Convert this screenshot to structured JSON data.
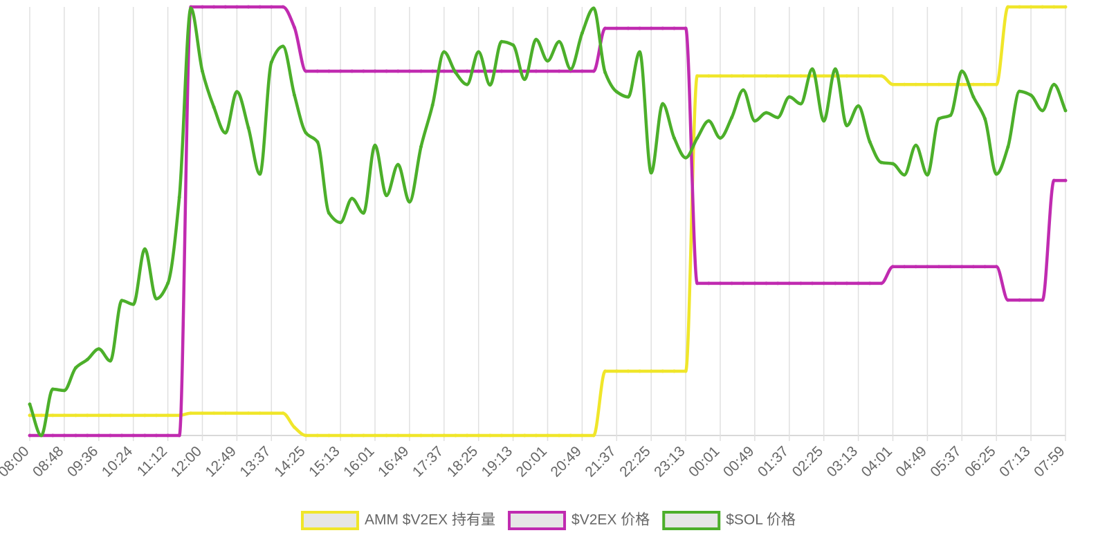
{
  "chart_data": {
    "type": "line",
    "categories": [
      "08:00",
      null,
      null,
      "08:48",
      null,
      null,
      "09:36",
      null,
      null,
      "10:24",
      null,
      null,
      "11:12",
      null,
      null,
      "12:00",
      null,
      null,
      "12:49",
      null,
      null,
      "13:37",
      null,
      null,
      "14:25",
      null,
      null,
      "15:13",
      null,
      null,
      "16:01",
      null,
      null,
      "16:49",
      null,
      null,
      "17:37",
      null,
      null,
      "18:25",
      null,
      null,
      "19:13",
      null,
      null,
      "20:01",
      null,
      null,
      "20:49",
      null,
      null,
      "21:37",
      null,
      null,
      "22:25",
      null,
      null,
      "23:13",
      null,
      null,
      "00:01",
      null,
      null,
      "00:49",
      null,
      null,
      "01:37",
      null,
      null,
      "02:25",
      null,
      null,
      "03:13",
      null,
      null,
      "04:01",
      null,
      null,
      "04:49",
      null,
      null,
      "05:37",
      null,
      null,
      "06:25",
      null,
      null,
      "07:13",
      null,
      null,
      "07:59"
    ],
    "series": [
      {
        "name": "AMM $V2EX 持有量",
        "color": "#f0e62a",
        "values": [
          4.7,
          4.7,
          4.7,
          4.7,
          4.7,
          4.7,
          4.7,
          4.7,
          4.7,
          4.7,
          4.7,
          4.7,
          4.7,
          4.7,
          5.2,
          5.2,
          5.2,
          5.2,
          5.2,
          5.2,
          5.2,
          5.2,
          5.2,
          1.9,
          0,
          0,
          0,
          0,
          0,
          0,
          0,
          0,
          0,
          0,
          0,
          0,
          0,
          0,
          0,
          0,
          0,
          0,
          0,
          0,
          0,
          0,
          0,
          0,
          0,
          0,
          15,
          15,
          15,
          15,
          15,
          15,
          15,
          15,
          83.9,
          83.9,
          83.9,
          83.9,
          83.9,
          83.9,
          83.9,
          83.9,
          83.9,
          83.9,
          83.9,
          83.9,
          83.9,
          83.9,
          83.9,
          83.9,
          83.9,
          81.9,
          81.9,
          81.9,
          81.9,
          81.9,
          81.9,
          81.9,
          81.9,
          81.9,
          81.9,
          100,
          100,
          100,
          100,
          100,
          100
        ]
      },
      {
        "name": "$V2EX 价格",
        "color": "#c02bb0",
        "values": [
          0,
          0,
          0,
          0,
          0,
          0,
          0,
          0,
          0,
          0,
          0,
          0,
          0,
          0,
          100,
          100,
          100,
          100,
          100,
          100,
          100,
          100,
          100,
          95.2,
          85,
          85,
          85,
          85,
          85,
          85,
          85,
          85,
          85,
          85,
          85,
          85,
          85,
          85,
          85,
          85,
          85,
          85,
          85,
          85,
          85,
          85,
          85,
          85,
          85,
          85,
          95,
          95,
          95,
          95,
          95,
          95,
          95,
          95,
          35.5,
          35.5,
          35.5,
          35.5,
          35.5,
          35.5,
          35.5,
          35.5,
          35.5,
          35.5,
          35.5,
          35.5,
          35.5,
          35.5,
          35.5,
          35.5,
          35.5,
          39.4,
          39.4,
          39.4,
          39.4,
          39.4,
          39.4,
          39.4,
          39.4,
          39.4,
          39.4,
          31.6,
          31.6,
          31.6,
          31.6,
          59.5,
          59.5
        ]
      },
      {
        "name": "$SOL 价格",
        "color": "#4caf2a",
        "values": [
          7.3,
          0,
          10.8,
          10.5,
          15.8,
          17.7,
          20.2,
          17.4,
          31.5,
          30.6,
          43.5,
          31.9,
          35.5,
          55.6,
          99.7,
          85,
          76.6,
          70.6,
          80.2,
          71.8,
          61,
          87.1,
          90.8,
          79.4,
          70.6,
          68.5,
          51.9,
          49.7,
          55.3,
          51.9,
          67.7,
          56,
          63.2,
          54.5,
          67.4,
          77.1,
          89.5,
          84.7,
          81.9,
          89.5,
          81.8,
          91.9,
          91.1,
          83.1,
          92.4,
          87.4,
          91.9,
          85.5,
          93.9,
          99.7,
          84.7,
          80.2,
          79,
          89.5,
          61.3,
          77.4,
          69.4,
          64.8,
          69.4,
          73.4,
          69.4,
          74.2,
          80.6,
          73.4,
          75.3,
          74.2,
          79,
          77.4,
          85.5,
          73.4,
          85.5,
          72.3,
          76.9,
          68.5,
          63.7,
          63.4,
          60.8,
          67.7,
          60.8,
          73.9,
          74.7,
          85,
          79,
          73.9,
          61,
          67.3,
          80.3,
          79.4,
          75.8,
          81.9,
          75.8
        ]
      }
    ],
    "ylim": [
      0,
      100
    ],
    "grid": true,
    "legend": "bottom"
  }
}
